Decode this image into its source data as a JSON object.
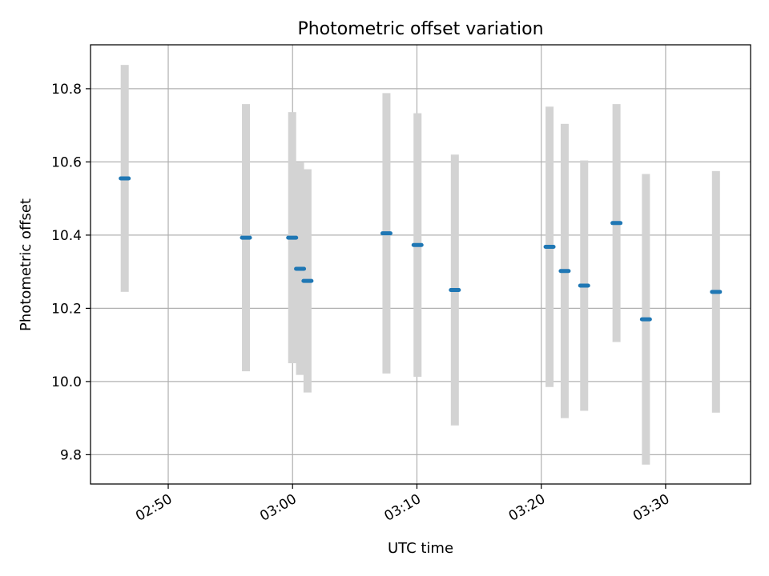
{
  "chart_data": {
    "type": "scatter",
    "title": "Photometric offset variation",
    "xlabel": "UTC time",
    "ylabel": "Photometric offset",
    "x_ticks": [
      "02:50",
      "03:00",
      "03:10",
      "03:20",
      "03:30"
    ],
    "y_ticks": [
      "9.8",
      "10.0",
      "10.2",
      "10.4",
      "10.6",
      "10.8"
    ],
    "xlim": [
      "02:43:45",
      "03:36:50"
    ],
    "ylim": [
      9.72,
      10.92
    ],
    "grid": true,
    "colors": {
      "points": "#1f77b4",
      "error_bars": "#d3d3d3",
      "grid": "#b0b0b0"
    },
    "series": [
      {
        "points": [
          {
            "x": "02:46:30",
            "y": 10.555,
            "err": 0.31
          },
          {
            "x": "02:56:15",
            "y": 10.393,
            "err": 0.365
          },
          {
            "x": "02:59:58",
            "y": 10.393,
            "err": 0.343
          },
          {
            "x": "03:00:36",
            "y": 10.308,
            "err": 0.29
          },
          {
            "x": "03:01:12",
            "y": 10.275,
            "err": 0.305
          },
          {
            "x": "03:07:33",
            "y": 10.405,
            "err": 0.383
          },
          {
            "x": "03:10:03",
            "y": 10.373,
            "err": 0.36
          },
          {
            "x": "03:13:03",
            "y": 10.25,
            "err": 0.37
          },
          {
            "x": "03:20:40",
            "y": 10.368,
            "err": 0.383
          },
          {
            "x": "03:21:53",
            "y": 10.302,
            "err": 0.402
          },
          {
            "x": "03:23:27",
            "y": 10.262,
            "err": 0.342
          },
          {
            "x": "03:26:03",
            "y": 10.433,
            "err": 0.325
          },
          {
            "x": "03:28:25",
            "y": 10.17,
            "err": 0.397
          },
          {
            "x": "03:34:03",
            "y": 10.245,
            "err": 0.33
          }
        ]
      }
    ]
  }
}
